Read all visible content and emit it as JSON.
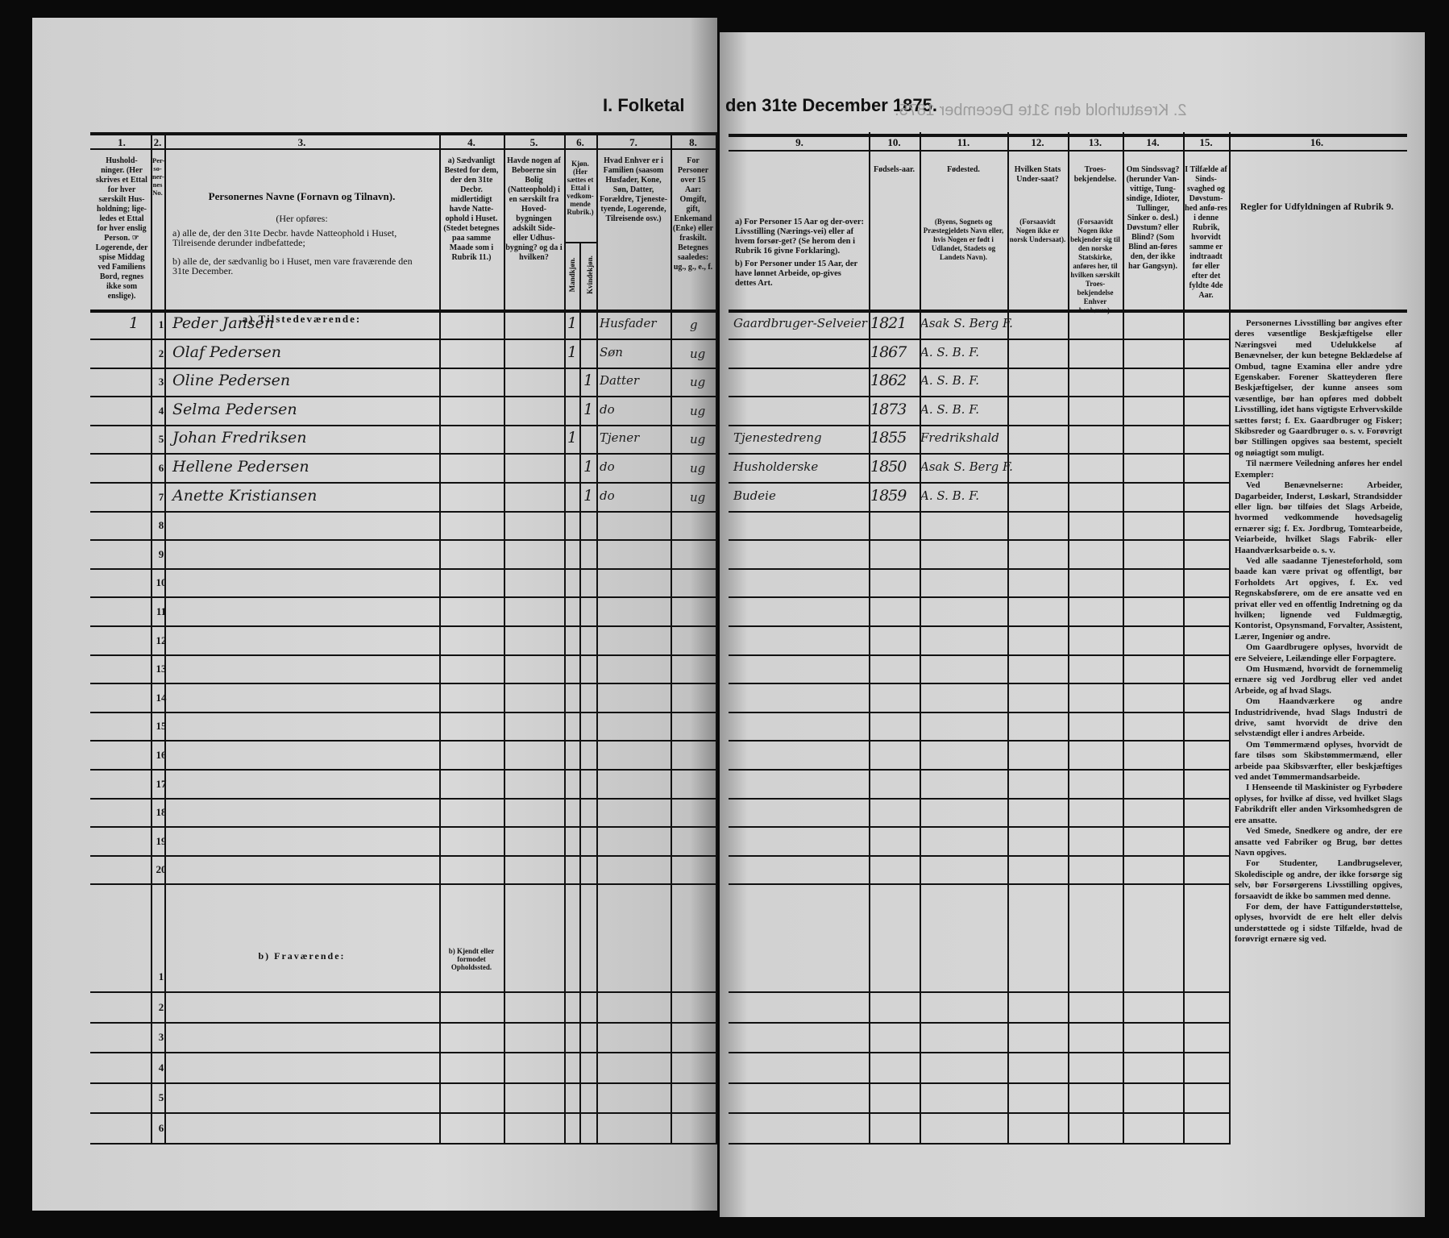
{
  "document": {
    "title_left": "I. Folketal",
    "title_right": "den 31te December 1875.",
    "mirror_text": "2. Kreaturhold den 31te December 1875."
  },
  "columns": [
    {
      "num": "1.",
      "header": "Hushold-ninger. (Her skrives et Ettal for hver særskilt Hus-holdning; lige-ledes et Ettal for hver enslig Person. ☞ Logerende, der spise Middag ved Familiens Bord, regnes ikke som enslige)."
    },
    {
      "num": "2.",
      "header": "Per-so-ner-nes No."
    },
    {
      "num": "3.",
      "header": "Personernes Navne (Fornavn og Tilnavn).",
      "sub": [
        "(Her opføres:",
        "a) alle de, der den 31te Decbr. havde Natteophold i Huset, Tilreisende derunder indbefattede;",
        "b) alle de, der sædvanlig bo i Huset, men vare fraværende den 31te December."
      ]
    },
    {
      "num": "4.",
      "header": "a) Sædvanligt Bested for dem, der den 31te Decbr. midlertidigt havde Natte-ophold i Huset. (Stedet betegnes paa samme Maade som i Rubrik 11.)"
    },
    {
      "num": "5.",
      "header": "Havde nogen af Beboerne sin Bolig (Natteophold) i en særskilt fra Hoved-bygningen adskilt Side- eller Udhus-bygning? og da i hvilken?"
    },
    {
      "num": "6.",
      "header": "Kjøn. (Her sættes et Ettal i vedkom-mende Rubrik.)",
      "sub": [
        "Mandkjøn.",
        "Kvindekjøn."
      ]
    },
    {
      "num": "7.",
      "header": "Hvad Enhver er i Familien (saasom Husfader, Kone, Søn, Datter, Forældre, Tjeneste-tyende, Logerende, Tilreisende osv.)"
    },
    {
      "num": "8.",
      "header": "For Personer over 15 Aar: Omgift, gift, Enkemand (Enke) eller fraskilt. Betegnes saaledes: ug., g., e., f."
    },
    {
      "num": "9.",
      "header": "",
      "sub": [
        "a) For Personer 15 Aar og der-over: Livsstilling (Nærings-vei) eller af hvem forsør-get? (Se herom den i Rubrik 16 givne Forklaring).",
        "b) For Personer under 15 Aar, der have lønnet Arbeide, op-gives dettes Art."
      ]
    },
    {
      "num": "10.",
      "header": "Fødsels-aar."
    },
    {
      "num": "11.",
      "header": "Fødested.",
      "sub": [
        "(Byens, Sognets og Præstegjeldets Navn eller, hvis Nogen er født i Udlandet, Stadets og Landets Navn)."
      ]
    },
    {
      "num": "12.",
      "header": "Hvilken Stats Under-saat?",
      "sub": [
        "(Forsaavidt Nogen ikke er norsk Undersaat)."
      ]
    },
    {
      "num": "13.",
      "header": "Troes-bekjendelse.",
      "sub": [
        "(Forsaavidt Nogen ikke bekjender sig til den norske Statskirke, anføres her, til hvilken særskilt Troes-bekjendelse Enhver henhører)."
      ]
    },
    {
      "num": "14.",
      "header": "Om Sindssvag? (herunder Van-vittige, Tung-sindige, Idioter, Tullinger, Sinker o. desl.) Døvstum? eller Blind? (Som Blind an-føres den, der ikke har Gangsyn)."
    },
    {
      "num": "15.",
      "header": "I Tilfælde af Sinds-svaghed og Døvstum-hed anfø-res i denne Rubrik, hvorvidt samme er indtraadt før eller efter det fyldte 4de Aar."
    },
    {
      "num": "16.",
      "header": "Regler for Udfyldningen af Rubrik 9."
    }
  ],
  "sections": {
    "present": "a) Tilstedeværende:",
    "absent": "b) Fraværende:",
    "absent_col4": "b) Kjendt eller formodet Opholdssted."
  },
  "household_mark": "1",
  "present_row_numbers": [
    "1",
    "2",
    "3",
    "4",
    "5",
    "6",
    "7",
    "8",
    "9",
    "10",
    "11",
    "12",
    "13",
    "14",
    "15",
    "16",
    "17",
    "18",
    "19",
    "20"
  ],
  "absent_row_numbers": [
    "1",
    "2",
    "3",
    "4",
    "5",
    "6"
  ],
  "persons": [
    {
      "name": "Peder Jansen",
      "male": "1",
      "female": "",
      "role": "Husfader",
      "civil": "g",
      "occupation": "Gaardbruger-Selveier",
      "birth_year": "1821",
      "birthplace": "Asak S. Berg F."
    },
    {
      "name": "Olaf Pedersen",
      "male": "1",
      "female": "",
      "role": "Søn",
      "civil": "ug",
      "occupation": "",
      "birth_year": "1867",
      "birthplace": "A. S. B. F."
    },
    {
      "name": "Oline Pedersen",
      "male": "",
      "female": "1",
      "role": "Datter",
      "civil": "ug",
      "occupation": "",
      "birth_year": "1862",
      "birthplace": "A. S. B. F."
    },
    {
      "name": "Selma Pedersen",
      "male": "",
      "female": "1",
      "role": "do",
      "civil": "ug",
      "occupation": "",
      "birth_year": "1873",
      "birthplace": "A. S. B. F."
    },
    {
      "name": "Johan Fredriksen",
      "male": "1",
      "female": "",
      "role": "Tjener",
      "civil": "ug",
      "occupation": "Tjenestedreng",
      "birth_year": "1855",
      "birthplace": "Fredrikshald"
    },
    {
      "name": "Hellene Pedersen",
      "male": "",
      "female": "1",
      "role": "do",
      "civil": "ug",
      "occupation": "Husholderske",
      "birth_year": "1850",
      "birthplace": "Asak S. Berg F."
    },
    {
      "name": "Anette Kristiansen",
      "male": "",
      "female": "1",
      "role": "do",
      "civil": "ug",
      "occupation": "Budeie",
      "birth_year": "1859",
      "birthplace": "A. S. B. F."
    }
  ],
  "rules_text": [
    "Personernes Livsstilling bør angives efter deres væsentlige Beskjæftigelse eller Næringsvei med Udelukkelse af Benævnelser, der kun betegne Beklædelse af Ombud, tagne Examina eller andre ydre Egenskaber. Forener Skatteyderen flere Beskjæftigelser, der kunne ansees som væsentlige, bør han opføres med dobbelt Livsstilling, idet hans vigtigste Erhvervskilde sættes først; f. Ex. Gaardbruger og Fisker; Skibsreder og Gaardbruger o. s. v. Forøvrigt bør Stillingen opgives saa bestemt, specielt og nøiagtigt som muligt.",
    "Til nærmere Veiledning anføres her endel Exempler:",
    "Ved Benævnelserne: Arbeider, Dagarbeider, Inderst, Løskarl, Strandsidder eller lign. bør tilføies det Slags Arbeide, hvormed vedkommende hovedsagelig ernærer sig; f. Ex. Jordbrug, Tomtearbeide, Veiarbeide, hvilket Slags Fabrik- eller Haandværksarbeide o. s. v.",
    "Ved alle saadanne Tjenesteforhold, som baade kan være privat og offentligt, bør Forholdets Art opgives, f. Ex. ved Regnskabsførere, om de ere ansatte ved en privat eller ved en offentlig Indretning og da hvilken; lignende ved Fuldmægtig, Kontorist, Opsynsmand, Forvalter, Assistent, Lærer, Ingeniør og andre.",
    "Om Gaardbrugere oplyses, hvorvidt de ere Selveiere, Leilændinge eller Forpagtere.",
    "Om Husmænd, hvorvidt de fornemmelig ernære sig ved Jordbrug eller ved andet Arbeide, og af hvad Slags.",
    "Om Haandværkere og andre Industridrivende, hvad Slags Industri de drive, samt hvorvidt de drive den selvstændigt eller i andres Arbeide.",
    "Om Tømmermænd oplyses, hvorvidt de fare tilsøs som Skibstømmermænd, eller arbeide paa Skibsværfter, eller beskjæftiges ved andet Tømmermandsarbeide.",
    "I Henseende til Maskinister og Fyrbødere oplyses, for hvilke af disse, ved hvilket Slags Fabrikdrift eller anden Virksomhedsgren de ere ansatte.",
    "Ved Smede, Snedkere og andre, der ere ansatte ved Fabriker og Brug, bør dettes Navn opgives.",
    "For Studenter, Landbrugselever, Skoledisciple og andre, der ikke forsørge sig selv, bør Forsørgerens Livsstilling opgives, forsaavidt de ikke bo sammen med denne.",
    "For dem, der have Fattigunderstøttelse, oplyses, hvorvidt de ere helt eller delvis understøttede og i sidste Tilfælde, hvad de forøvrigt ernære sig ved."
  ]
}
